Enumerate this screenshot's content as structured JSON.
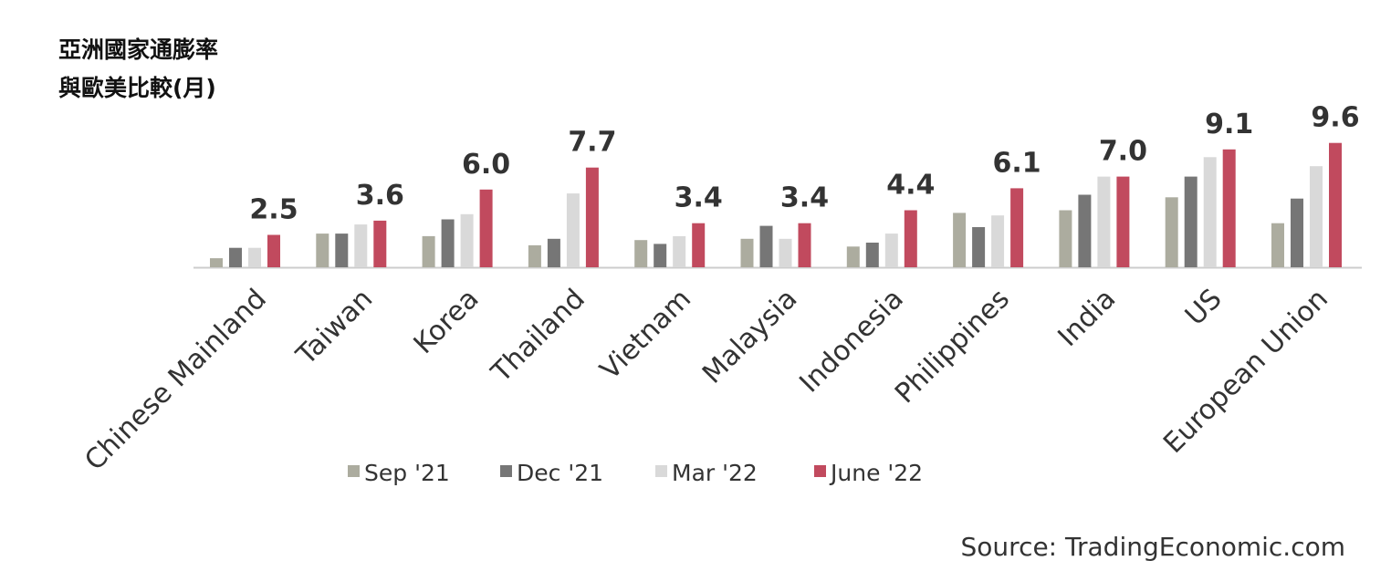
{
  "title_lines": [
    "亞洲國家通膨率",
    "與歐美比較(月)"
  ],
  "source": "Source: TradingEconomic.com",
  "colors": {
    "Sep '21": "#acac9f",
    "Dec '21": "#767676",
    "Mar '22": "#d9d9d9",
    "June '22": "#c14a5e",
    "axis": "#cccccc",
    "label": "#333333"
  },
  "chart_data": {
    "type": "bar",
    "title": "亞洲國家通膨率 與歐美比較(月)",
    "xlabel": "",
    "ylabel": "",
    "ylim": [
      0,
      10
    ],
    "grid": false,
    "legend_position": "bottom",
    "categories": [
      "Chinese Mainland",
      "Taiwan",
      "Korea",
      "Thailand",
      "Vietnam",
      "Malaysia",
      "Indonesia",
      "Philippines",
      "India",
      "US",
      "European Union"
    ],
    "series": [
      {
        "name": "Sep '21",
        "values": [
          0.7,
          2.6,
          2.4,
          1.7,
          2.1,
          2.2,
          1.6,
          4.2,
          4.4,
          5.4,
          3.4
        ]
      },
      {
        "name": "Dec '21",
        "values": [
          1.5,
          2.6,
          3.7,
          2.2,
          1.8,
          3.2,
          1.9,
          3.1,
          5.6,
          7.0,
          5.3
        ]
      },
      {
        "name": "Mar '22",
        "values": [
          1.5,
          3.3,
          4.1,
          5.7,
          2.4,
          2.2,
          2.6,
          4.0,
          7.0,
          8.5,
          7.8
        ]
      },
      {
        "name": "June '22",
        "values": [
          2.5,
          3.6,
          6.0,
          7.7,
          3.4,
          3.4,
          4.4,
          6.1,
          7.0,
          9.1,
          9.6
        ]
      }
    ],
    "data_labels": [
      "2.5",
      "3.6",
      "6.0",
      "7.7",
      "3.4",
      "3.4",
      "4.4",
      "6.1",
      "7.0",
      "9.1",
      "9.6"
    ]
  }
}
